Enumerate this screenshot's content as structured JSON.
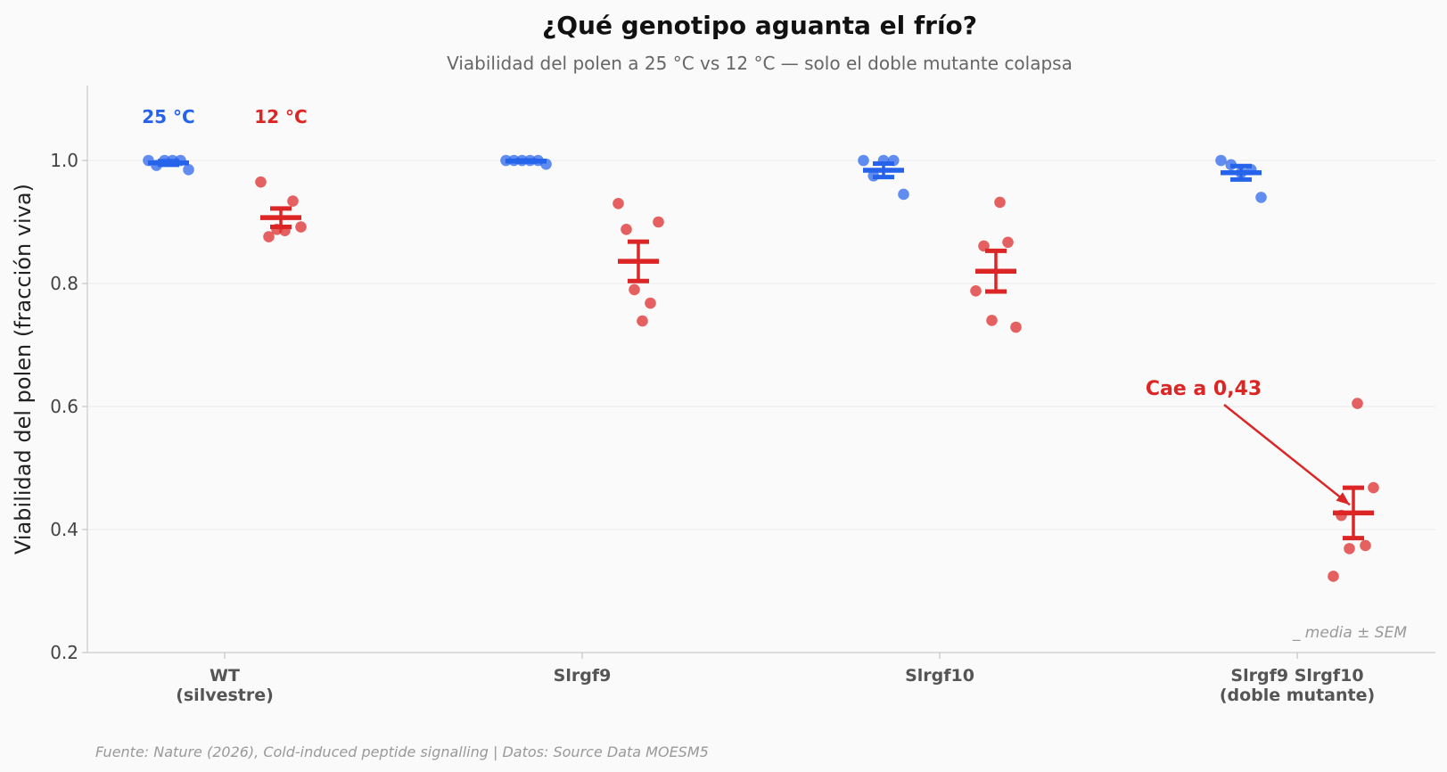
{
  "chart_data": {
    "type": "scatter",
    "title": "¿Qué genotipo aguanta el frío?",
    "subtitle": "Viabilidad del polen a 25 °C vs 12 °C — solo el doble mutante colapsa",
    "ylabel": "Viabilidad del polen (fracción viva)",
    "xlabel": "",
    "ylim": [
      0.2,
      1.12
    ],
    "yticks": [
      "0.2",
      "0.4",
      "0.6",
      "0.8",
      "1.0"
    ],
    "grid": "horizontal",
    "categories": [
      {
        "line1": "WT",
        "line2": "(silvestre)"
      },
      {
        "line1": "Slrgf9",
        "line2": ""
      },
      {
        "line1": "Slrgf10",
        "line2": ""
      },
      {
        "line1": "Slrgf9 Slrgf10",
        "line2": "(doble mutante)"
      }
    ],
    "series": [
      {
        "name": "25 °C",
        "color": "#2563eb",
        "groups": [
          {
            "points": [
              1.0,
              0.992,
              1.0,
              1.0,
              1.0,
              0.985
            ],
            "mean": 0.996,
            "sem": 0.003
          },
          {
            "points": [
              1.0,
              1.0,
              1.0,
              1.0,
              1.0,
              0.994
            ],
            "mean": 0.999,
            "sem": 0.001
          },
          {
            "points": [
              1.0,
              0.975,
              1.0,
              1.0,
              0.945
            ],
            "mean": 0.984,
            "sem": 0.011
          },
          {
            "points": [
              1.0,
              0.993,
              0.98,
              0.985,
              0.94
            ],
            "mean": 0.98,
            "sem": 0.011
          }
        ]
      },
      {
        "name": "12 °C",
        "color": "#dc2626",
        "groups": [
          {
            "points": [
              0.965,
              0.876,
              0.888,
              0.886,
              0.934,
              0.892
            ],
            "mean": 0.907,
            "sem": 0.015
          },
          {
            "points": [
              0.93,
              0.888,
              0.79,
              0.739,
              0.768,
              0.9
            ],
            "mean": 0.836,
            "sem": 0.032
          },
          {
            "points": [
              0.788,
              0.861,
              0.74,
              0.932,
              0.867,
              0.729
            ],
            "mean": 0.82,
            "sem": 0.033
          },
          {
            "points": [
              0.324,
              0.423,
              0.369,
              0.605,
              0.374,
              0.468
            ],
            "mean": 0.427,
            "sem": 0.041
          }
        ]
      }
    ],
    "annotation": {
      "text": "Cae a 0,43",
      "target_group": 3,
      "target_value": 0.43
    },
    "note": "media ± SEM",
    "source": "Fuente: Nature (2026), Cold-induced peptide signalling | Datos: Source Data MOESM5"
  }
}
